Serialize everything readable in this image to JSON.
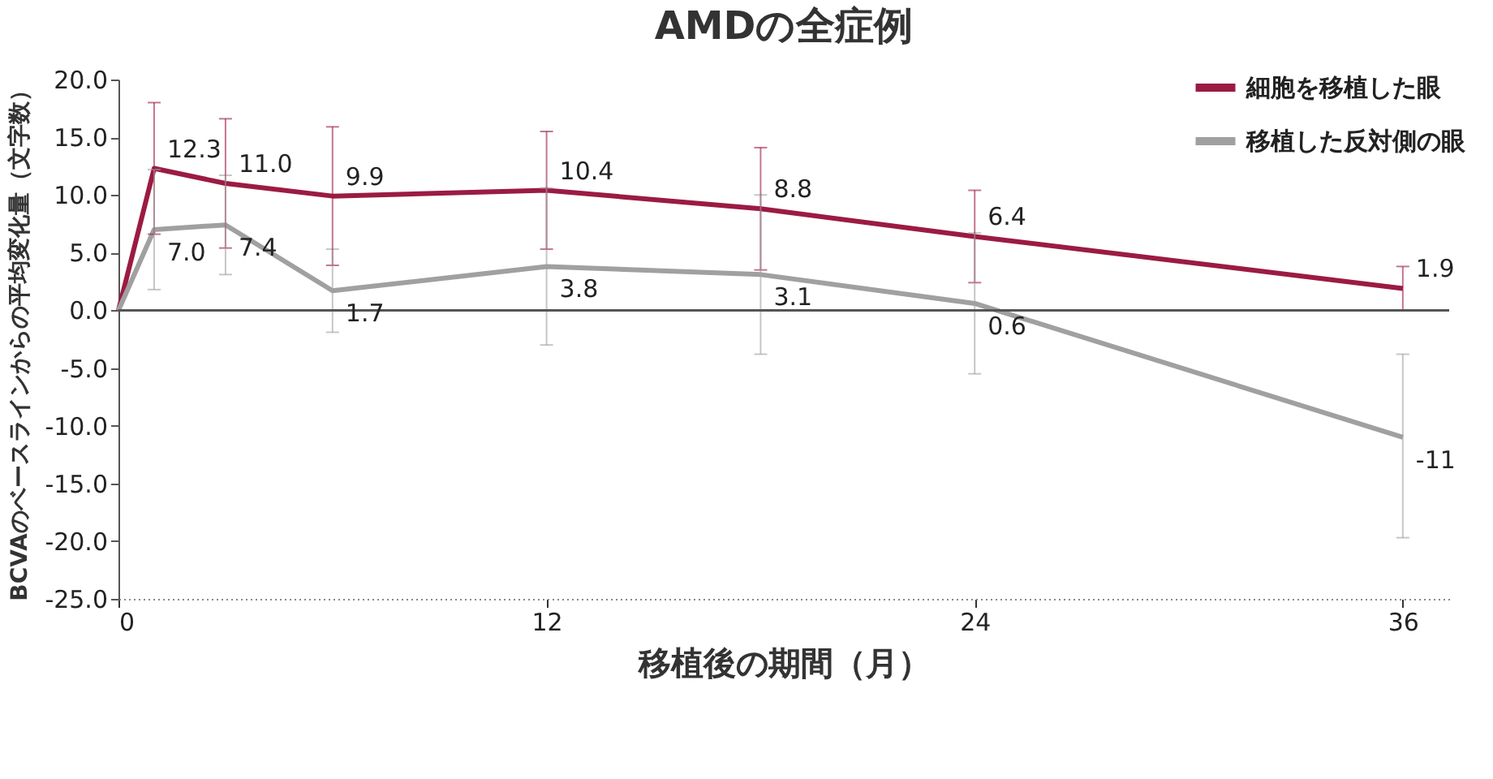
{
  "chart_data": {
    "type": "line",
    "title": "AMDの全症例",
    "xlabel": "移植後の期間（月）",
    "ylabel": "BCVAのベースラインからの平均変化量（文字数）",
    "x": [
      0,
      1,
      3,
      6,
      12,
      18,
      24,
      36
    ],
    "series": [
      {
        "name": "細胞を移植した眼",
        "color": "#9b1b43",
        "values": [
          0,
          12.3,
          11.0,
          9.9,
          10.4,
          8.8,
          6.4,
          1.9
        ],
        "errors": [
          null,
          5.7,
          5.6,
          6.0,
          5.1,
          5.3,
          4.0,
          1.9
        ],
        "value_labels": [
          null,
          "12.3",
          "11.0",
          "9.9",
          "10.4",
          "8.8",
          "6.4",
          "1.9"
        ]
      },
      {
        "name": "移植した反対側の眼",
        "color": "#a0a0a0",
        "values": [
          0,
          7.0,
          7.4,
          1.7,
          3.8,
          3.1,
          0.6,
          -11
        ],
        "errors": [
          null,
          5.2,
          4.3,
          3.6,
          6.8,
          6.9,
          6.1,
          [
            -19.7,
            -3.8
          ]
        ],
        "value_labels": [
          null,
          "7.0",
          "7.4",
          "1.7",
          "3.8",
          "3.1",
          "0.6",
          "-11"
        ]
      }
    ],
    "xlim": [
      0,
      37.3
    ],
    "xticks": [
      0,
      12,
      24,
      36
    ],
    "ylim": [
      -25,
      20
    ],
    "yticks": [
      {
        "value": 20,
        "label": "20.0"
      },
      {
        "value": 15,
        "label": "15.0"
      },
      {
        "value": 10,
        "label": "10.0"
      },
      {
        "value": 5,
        "label": "5.0"
      },
      {
        "value": 0,
        "label": "0.0"
      },
      {
        "value": -5,
        "label": "-5.0"
      },
      {
        "value": -10,
        "label": "-10.0"
      },
      {
        "value": -15,
        "label": "-15.0"
      },
      {
        "value": -20,
        "label": "-20.0"
      },
      {
        "value": -25,
        "label": "-25.0"
      }
    ],
    "ref_lines": [
      {
        "axis": "y",
        "value": 0,
        "color": "#555555"
      }
    ],
    "legend": "top right",
    "grid": false,
    "marker": "none",
    "line_style": "solid"
  }
}
